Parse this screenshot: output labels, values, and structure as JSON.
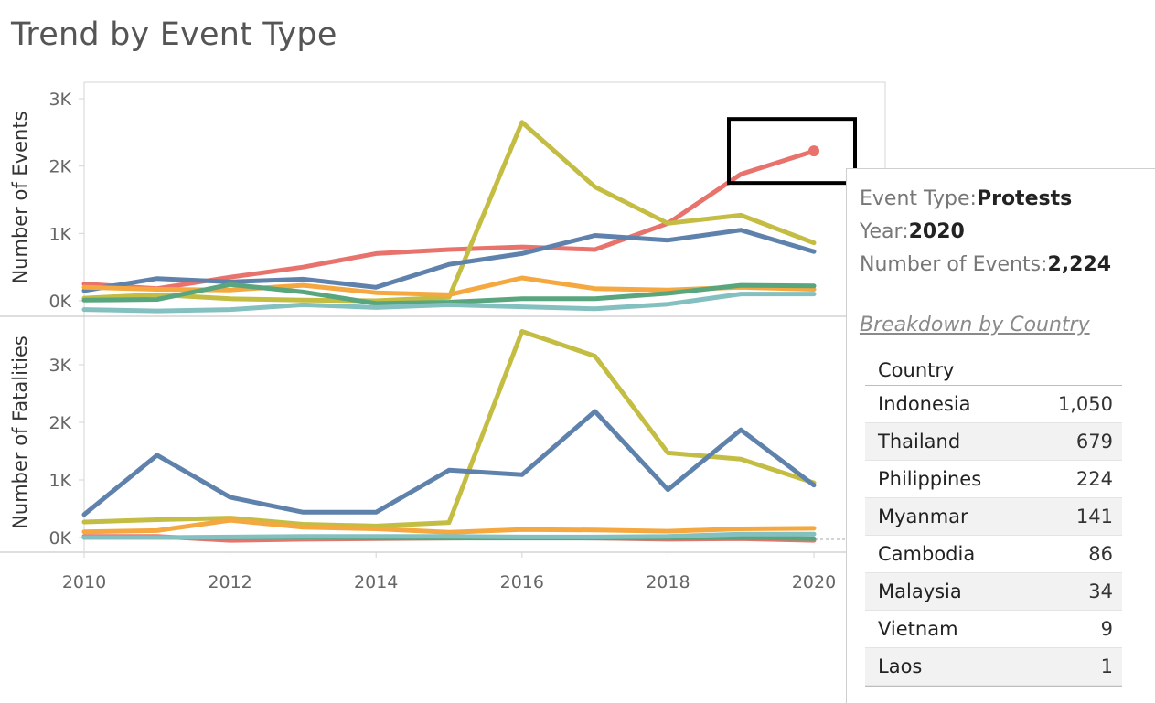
{
  "title": "Trend by Event Type",
  "chart_data": {
    "type": "line",
    "x": [
      2010,
      2011,
      2012,
      2013,
      2014,
      2015,
      2016,
      2017,
      2018,
      2019,
      2020
    ],
    "xticks": [
      "2010",
      "2012",
      "2014",
      "2016",
      "2018",
      "2020"
    ],
    "panels": [
      {
        "ylabel": "Number of Events",
        "yticks": [
          "0K",
          "1K",
          "2K",
          "3K"
        ],
        "ylim": [
          0,
          3000
        ],
        "series": [
          {
            "color": "#e8736c",
            "values": [
              250,
              180,
              350,
              500,
              700,
              760,
              800,
              760,
              1150,
              1880,
              2224
            ]
          },
          {
            "color": "#c4bd43",
            "values": [
              40,
              90,
              30,
              10,
              0,
              50,
              2650,
              1690,
              1150,
              1270,
              860
            ]
          },
          {
            "color": "#5f82ad",
            "values": [
              150,
              330,
              280,
              320,
              200,
              540,
              700,
              970,
              900,
              1050,
              730
            ]
          },
          {
            "color": "#f5a83f",
            "values": [
              200,
              170,
              160,
              230,
              120,
              90,
              340,
              180,
              160,
              200,
              170
            ]
          },
          {
            "color": "#59a67e",
            "values": [
              10,
              20,
              240,
              130,
              -40,
              -20,
              30,
              30,
              110,
              230,
              220
            ]
          },
          {
            "color": "#85c0c1",
            "values": [
              -130,
              -150,
              -130,
              -60,
              -100,
              -60,
              -90,
              -120,
              -50,
              100,
              100
            ]
          }
        ]
      },
      {
        "ylabel": "Number of Fatalities",
        "yticks": [
          "0K",
          "1K",
          "2K",
          "3K"
        ],
        "ylim": [
          0,
          3000
        ],
        "series": [
          {
            "color": "#e8736c",
            "values": [
              20,
              20,
              -50,
              -30,
              -20,
              -10,
              0,
              -10,
              -30,
              -20,
              -50
            ]
          },
          {
            "color": "#c4bd43",
            "values": [
              270,
              310,
              340,
              230,
              200,
              260,
              3580,
              3150,
              1470,
              1360,
              950
            ]
          },
          {
            "color": "#5f82ad",
            "values": [
              400,
              1430,
              700,
              440,
              440,
              1170,
              1090,
              2190,
              830,
              1870,
              910
            ]
          },
          {
            "color": "#f5a83f",
            "values": [
              100,
              120,
              300,
              180,
              150,
              90,
              140,
              130,
              110,
              150,
              160
            ]
          },
          {
            "color": "#59a67e",
            "values": [
              0,
              0,
              0,
              10,
              -10,
              -10,
              -10,
              -10,
              -10,
              0,
              -20
            ]
          },
          {
            "color": "#85c0c1",
            "values": [
              0,
              0,
              10,
              20,
              20,
              20,
              10,
              10,
              20,
              60,
              60
            ]
          }
        ]
      }
    ]
  },
  "highlight": {
    "series_index": 0,
    "year": 2020
  },
  "tooltip": {
    "event_type_label": "Event Type:",
    "event_type": "Protests",
    "year_label": "Year:",
    "year": "2020",
    "events_label": "Number of Events:",
    "events": "2,224",
    "breakdown_link": "Breakdown by Country",
    "country_header": "Country",
    "countries": [
      {
        "name": "Indonesia",
        "value": "1,050"
      },
      {
        "name": "Thailand",
        "value": "679"
      },
      {
        "name": "Philippines",
        "value": "224"
      },
      {
        "name": "Myanmar",
        "value": "141"
      },
      {
        "name": "Cambodia",
        "value": "86"
      },
      {
        "name": "Malaysia",
        "value": "34"
      },
      {
        "name": "Vietnam",
        "value": "9"
      },
      {
        "name": "Laos",
        "value": "1"
      }
    ]
  }
}
